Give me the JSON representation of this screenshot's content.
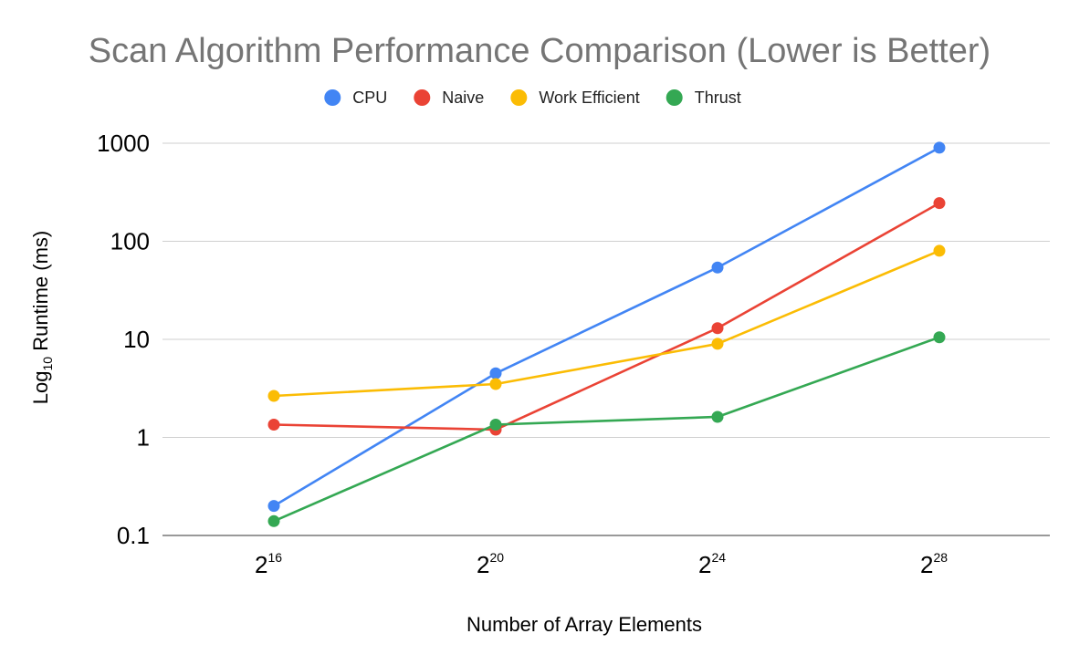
{
  "chart_data": {
    "type": "line",
    "title": "Scan Algorithm Performance Comparison (Lower is Better)",
    "xlabel": "Number of Array Elements",
    "ylabel": "Log",
    "ylabel_sub": "10",
    "ylabel_rest": " Runtime (ms)",
    "yscale": "log",
    "ylim": [
      0.1,
      1000
    ],
    "grid": true,
    "legend_position": "top",
    "categories": [
      {
        "base": "2",
        "exp": "16"
      },
      {
        "base": "2",
        "exp": "20"
      },
      {
        "base": "2",
        "exp": "24"
      },
      {
        "base": "2",
        "exp": "28"
      }
    ],
    "yticks": [
      {
        "value": 1000,
        "label": "1000"
      },
      {
        "value": 100,
        "label": "100"
      },
      {
        "value": 10,
        "label": "10"
      },
      {
        "value": 1,
        "label": "1"
      },
      {
        "value": 0.1,
        "label": "0.1"
      }
    ],
    "series": [
      {
        "name": "CPU",
        "color": "#4285f4",
        "values": [
          0.2,
          4.5,
          54,
          900
        ]
      },
      {
        "name": "Naive",
        "color": "#ea4335",
        "values": [
          1.35,
          1.2,
          13,
          245
        ]
      },
      {
        "name": "Work Efficient",
        "color": "#fbbc04",
        "values": [
          2.65,
          3.5,
          9,
          80
        ]
      },
      {
        "name": "Thrust",
        "color": "#34a853",
        "values": [
          0.14,
          1.35,
          1.62,
          10.5
        ]
      }
    ]
  }
}
